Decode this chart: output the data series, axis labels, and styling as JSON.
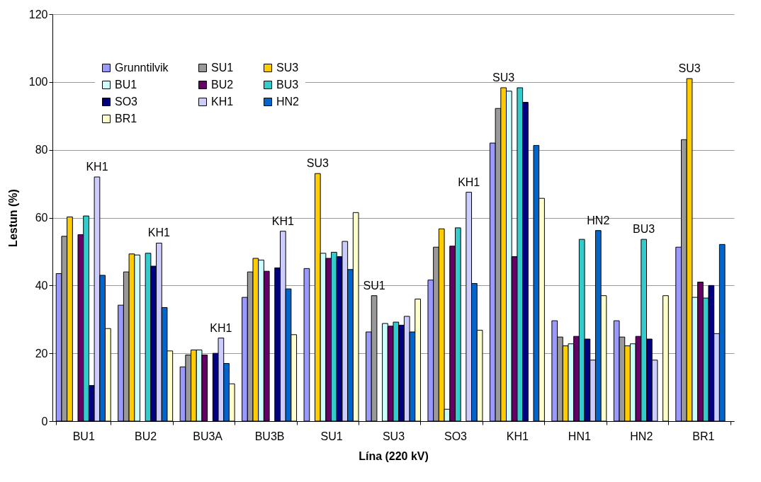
{
  "chart_data": {
    "type": "bar",
    "xlabel": "Lína (220 kV)",
    "ylabel": "Lestun (%)",
    "categories": [
      "BU1",
      "BU2",
      "BU3A",
      "BU3B",
      "SU1",
      "SU3",
      "SO3",
      "KH1",
      "HN1",
      "HN2",
      "BR1"
    ],
    "series": [
      {
        "name": "Grunntilvik",
        "color": "#9999ff",
        "values": [
          43.5,
          34.2,
          16,
          36.5,
          45,
          26.3,
          41.6,
          82,
          29.6,
          29.6,
          51.3
        ]
      },
      {
        "name": "SU1",
        "color": "#999999",
        "values": [
          54.5,
          44,
          19.5,
          44,
          null,
          37,
          51.3,
          92.2,
          24.8,
          24.8,
          83
        ]
      },
      {
        "name": "SU3",
        "color": "#ffcc00",
        "values": [
          60.2,
          49.3,
          21,
          48,
          73,
          null,
          56.7,
          98.3,
          22.2,
          22.2,
          101
        ]
      },
      {
        "name": "BU1",
        "color": "#ccffff",
        "values": [
          null,
          49,
          21,
          47.5,
          49.5,
          28.8,
          3.5,
          97.3,
          22.8,
          22.8,
          36.5
        ]
      },
      {
        "name": "BU2",
        "color": "#660066",
        "values": [
          55,
          null,
          19.5,
          44.2,
          48,
          28,
          51.6,
          48.5,
          25,
          25,
          41
        ]
      },
      {
        "name": "BU3",
        "color": "#33cccc",
        "values": [
          60.5,
          49.5,
          null,
          null,
          49.8,
          29.2,
          57,
          98.3,
          53.6,
          53.6,
          36.3
        ]
      },
      {
        "name": "SO3",
        "color": "#000080",
        "values": [
          10.5,
          45.7,
          20,
          45.2,
          48.5,
          28.3,
          null,
          94,
          24.2,
          24.2,
          40
        ]
      },
      {
        "name": "KH1",
        "color": "#ccccff",
        "values": [
          72,
          52.5,
          24.5,
          56,
          53,
          30.9,
          67.5,
          null,
          18,
          18,
          25.8
        ]
      },
      {
        "name": "HN2",
        "color": "#0066cc",
        "values": [
          43,
          33.5,
          17,
          39,
          44.7,
          26.3,
          40.6,
          81.3,
          56.2,
          null,
          52.1
        ]
      },
      {
        "name": "BR1",
        "color": "#ffffcc",
        "values": [
          27.3,
          20.7,
          11,
          25.5,
          61.5,
          36,
          26.8,
          65.7,
          37,
          37,
          null
        ]
      }
    ],
    "ylim": [
      0,
      120
    ],
    "yticks": [
      0,
      20,
      40,
      60,
      80,
      100,
      120
    ],
    "grid": "y",
    "legend": "top left",
    "annotations": [
      "KH1",
      "KH1",
      "KH1",
      "KH1",
      "SU3",
      "SU1",
      "KH1",
      "SU3",
      "HN2",
      "BU3",
      "SU3"
    ]
  }
}
